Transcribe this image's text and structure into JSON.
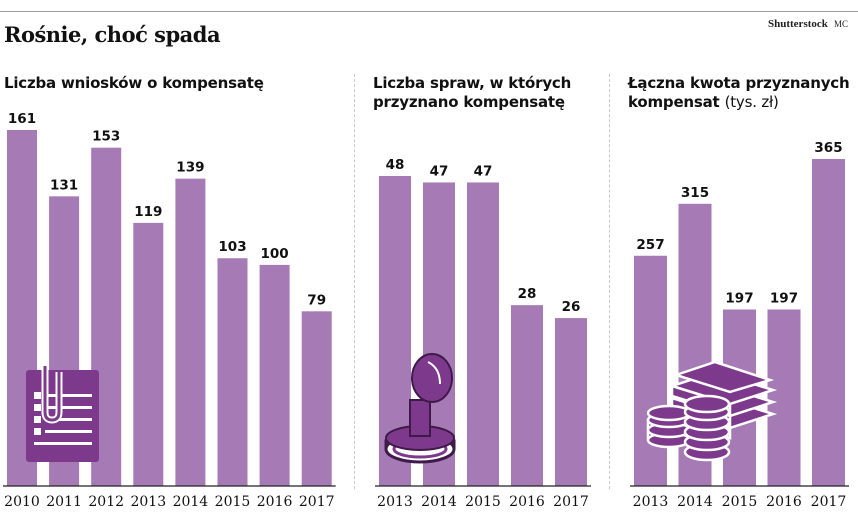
{
  "header": {
    "title": "Rośnie, choć spada",
    "source": "Shutterstock",
    "author": "MC"
  },
  "colors": {
    "bar": "#a57ab5",
    "icon": "#7d3a8c",
    "icon_dark": "#3f1a49"
  },
  "icons": [
    "clipboard-icon",
    "stamp-icon",
    "money-icon"
  ],
  "chart_data": [
    {
      "type": "bar",
      "title_line1": "Liczba wniosków o kompensatę",
      "title_line2": "",
      "unit": "",
      "categories": [
        "2010",
        "2011",
        "2012",
        "2013",
        "2014",
        "2015",
        "2016",
        "2017"
      ],
      "values": [
        161,
        131,
        153,
        119,
        139,
        103,
        100,
        79
      ]
    },
    {
      "type": "bar",
      "title_line1": "Liczba spraw, w których",
      "title_line2": "przyznano kompensatę",
      "unit": "",
      "categories": [
        "2013",
        "2014",
        "2015",
        "2016",
        "2017"
      ],
      "values": [
        48,
        47,
        47,
        28,
        26
      ]
    },
    {
      "type": "bar",
      "title_line1": "Łączna kwota przyznanych",
      "title_line2": "kompensat",
      "unit": "(tys. zł)",
      "categories": [
        "2013",
        "2014",
        "2015",
        "2016",
        "2017"
      ],
      "values": [
        257,
        315,
        197,
        197,
        365
      ]
    }
  ]
}
